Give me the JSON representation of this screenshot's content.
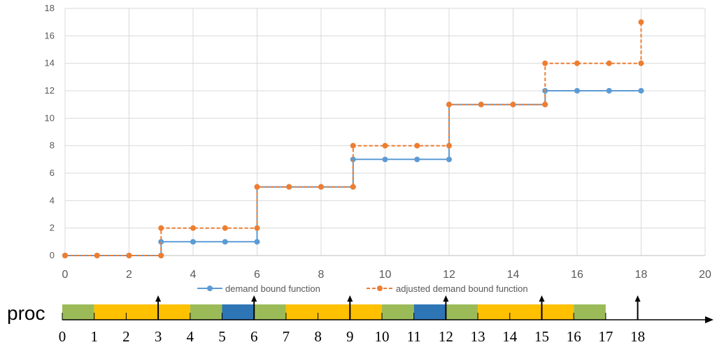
{
  "chart_data": {
    "type": "line",
    "xlim": [
      0,
      20
    ],
    "ylim": [
      0,
      18
    ],
    "x_ticks": [
      "0",
      "2",
      "4",
      "6",
      "8",
      "10",
      "12",
      "14",
      "16",
      "18",
      "20"
    ],
    "y_ticks": [
      "0",
      "2",
      "4",
      "6",
      "8",
      "10",
      "12",
      "14",
      "16",
      "18"
    ],
    "grid": true,
    "legend_position": "bottom",
    "series": [
      {
        "name": "demand bound function",
        "color": "#5B9BD5",
        "style": "solid-step",
        "points": [
          [
            0,
            0
          ],
          [
            1,
            0
          ],
          [
            2,
            0
          ],
          [
            3,
            0
          ],
          [
            3,
            1
          ],
          [
            4,
            1
          ],
          [
            5,
            1
          ],
          [
            6,
            1
          ],
          [
            6,
            5
          ],
          [
            7,
            5
          ],
          [
            8,
            5
          ],
          [
            9,
            5
          ],
          [
            9,
            7
          ],
          [
            10,
            7
          ],
          [
            11,
            7
          ],
          [
            12,
            7
          ],
          [
            12,
            11
          ],
          [
            13,
            11
          ],
          [
            14,
            11
          ],
          [
            15,
            11
          ],
          [
            15,
            12
          ],
          [
            16,
            12
          ],
          [
            17,
            12
          ],
          [
            18,
            12
          ]
        ]
      },
      {
        "name": "adjusted demand bound function",
        "color": "#ED7D31",
        "style": "dashed-step",
        "points": [
          [
            0,
            0
          ],
          [
            1,
            0
          ],
          [
            2,
            0
          ],
          [
            3,
            0
          ],
          [
            3,
            2
          ],
          [
            4,
            2
          ],
          [
            5,
            2
          ],
          [
            6,
            2
          ],
          [
            6,
            5
          ],
          [
            7,
            5
          ],
          [
            8,
            5
          ],
          [
            9,
            5
          ],
          [
            9,
            8
          ],
          [
            10,
            8
          ],
          [
            11,
            8
          ],
          [
            12,
            8
          ],
          [
            12,
            11
          ],
          [
            13,
            11
          ],
          [
            14,
            11
          ],
          [
            15,
            11
          ],
          [
            15,
            14
          ],
          [
            16,
            14
          ],
          [
            17,
            14
          ],
          [
            18,
            14
          ],
          [
            18,
            17
          ]
        ]
      }
    ]
  },
  "schedule": {
    "label": "proc",
    "time_labels": [
      "0",
      "1",
      "2",
      "3",
      "4",
      "5",
      "6",
      "7",
      "8",
      "9",
      "10",
      "11",
      "12",
      "13",
      "14",
      "15",
      "16",
      "17",
      "18"
    ],
    "blocks": [
      {
        "start": 0,
        "end": 1,
        "color": "#9BBB59"
      },
      {
        "start": 1,
        "end": 4,
        "color": "#FFC000"
      },
      {
        "start": 4,
        "end": 5,
        "color": "#9BBB59"
      },
      {
        "start": 5,
        "end": 6,
        "color": "#2E75B6"
      },
      {
        "start": 6,
        "end": 7,
        "color": "#9BBB59"
      },
      {
        "start": 7,
        "end": 10,
        "color": "#FFC000"
      },
      {
        "start": 10,
        "end": 11,
        "color": "#9BBB59"
      },
      {
        "start": 11,
        "end": 12,
        "color": "#2E75B6"
      },
      {
        "start": 12,
        "end": 13,
        "color": "#9BBB59"
      },
      {
        "start": 13,
        "end": 16,
        "color": "#FFC000"
      },
      {
        "start": 16,
        "end": 17,
        "color": "#9BBB59"
      }
    ],
    "release_arrows": [
      3,
      6,
      9,
      12,
      15,
      18
    ]
  }
}
